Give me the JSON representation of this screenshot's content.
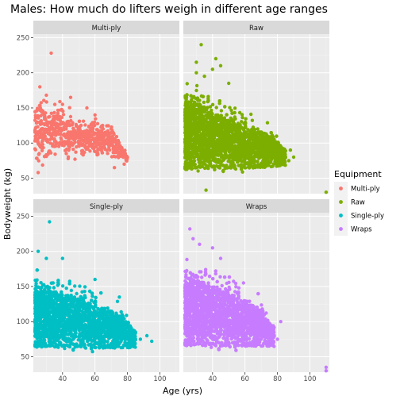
{
  "chart_data": {
    "type": "scatter",
    "title": "Males: How much do lifters weigh in different age ranges",
    "xlabel": "Age (yrs)",
    "ylabel": "Bodyweight (kg)",
    "xlim": [
      22,
      112
    ],
    "ylim": [
      28,
      255
    ],
    "x_ticks": [
      40,
      60,
      80,
      100
    ],
    "y_ticks": [
      50,
      100,
      150,
      200,
      250
    ],
    "grid": true,
    "facet_layout": "2x2",
    "legend": {
      "title": "Equipment",
      "placement": "right",
      "entries": [
        "Multi-ply",
        "Raw",
        "Single-ply",
        "Wraps"
      ]
    },
    "series": [
      {
        "name": "Multi-ply",
        "color": "#F8766D",
        "shape": {
          "x_range": [
            23,
            80
          ],
          "density": [
            [
              23,
              60,
              175
            ],
            [
              30,
              65,
              175
            ],
            [
              40,
              70,
              160
            ],
            [
              50,
              70,
              150
            ],
            [
              60,
              75,
              140
            ],
            [
              70,
              75,
              130
            ],
            [
              80,
              72,
              85
            ]
          ]
        },
        "points": [
          [
            33,
            228
          ],
          [
            26,
            180
          ],
          [
            30,
            168
          ],
          [
            45,
            165
          ],
          [
            40,
            155
          ],
          [
            80,
            80
          ],
          [
            78,
            70
          ],
          [
            72,
            65
          ],
          [
            75,
            85
          ],
          [
            65,
            120
          ],
          [
            60,
            140
          ],
          [
            55,
            150
          ],
          [
            25,
            58
          ],
          [
            70,
            100
          ]
        ]
      },
      {
        "name": "Raw",
        "color": "#7CAE00",
        "shape": {
          "x_range": [
            23,
            85
          ],
          "density": [
            [
              23,
              45,
              190
            ],
            [
              30,
              45,
              200
            ],
            [
              40,
              48,
              180
            ],
            [
              50,
              50,
              165
            ],
            [
              60,
              52,
              150
            ],
            [
              70,
              55,
              140
            ],
            [
              80,
              60,
              120
            ],
            [
              85,
              65,
              95
            ]
          ]
        },
        "points": [
          [
            33,
            240
          ],
          [
            30,
            215
          ],
          [
            40,
            205
          ],
          [
            45,
            210
          ],
          [
            30,
            200
          ],
          [
            35,
            195
          ],
          [
            110,
            30
          ],
          [
            88,
            90
          ],
          [
            90,
            80
          ],
          [
            87,
            75
          ],
          [
            36,
            33
          ],
          [
            42,
            220
          ],
          [
            50,
            185
          ]
        ]
      },
      {
        "name": "Single-ply",
        "color": "#00BFC4",
        "shape": {
          "x_range": [
            23,
            85
          ],
          "density": [
            [
              23,
              48,
              180
            ],
            [
              30,
              48,
              180
            ],
            [
              40,
              48,
              175
            ],
            [
              50,
              50,
              165
            ],
            [
              60,
              50,
              150
            ],
            [
              70,
              52,
              140
            ],
            [
              80,
              55,
              120
            ],
            [
              85,
              60,
              90
            ]
          ]
        },
        "points": [
          [
            32,
            242
          ],
          [
            25,
            200
          ],
          [
            30,
            190
          ],
          [
            92,
            80
          ],
          [
            95,
            72
          ],
          [
            88,
            75
          ],
          [
            85,
            85
          ],
          [
            75,
            135
          ],
          [
            40,
            190
          ],
          [
            60,
            160
          ]
        ]
      },
      {
        "name": "Wraps",
        "color": "#C77CFF",
        "shape": {
          "x_range": [
            23,
            78
          ],
          "density": [
            [
              23,
              48,
              195
            ],
            [
              30,
              48,
              200
            ],
            [
              40,
              48,
              190
            ],
            [
              50,
              50,
              175
            ],
            [
              60,
              52,
              160
            ],
            [
              70,
              55,
              140
            ],
            [
              78,
              60,
              100
            ]
          ]
        },
        "points": [
          [
            26,
            232
          ],
          [
            28,
            218
          ],
          [
            32,
            210
          ],
          [
            40,
            205
          ],
          [
            110,
            35
          ],
          [
            110,
            30
          ],
          [
            82,
            100
          ],
          [
            80,
            75
          ],
          [
            77,
            85
          ],
          [
            45,
            190
          ]
        ]
      }
    ]
  }
}
